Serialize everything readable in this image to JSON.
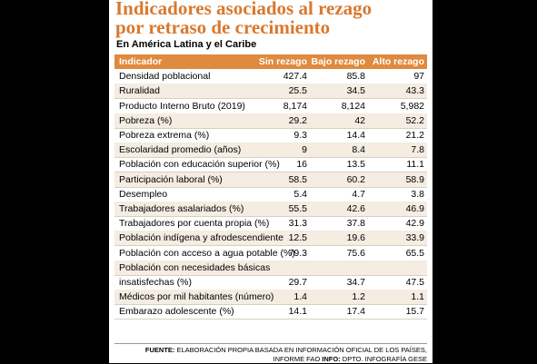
{
  "header": {
    "title_lines": [
      "Indicadores asociados al rezago",
      "por retraso de crecimiento"
    ],
    "subtitle": "En América Latina y el Caribe"
  },
  "table": {
    "columns": [
      "Indicador",
      "Sin rezago",
      "Bajo rezago",
      "Alto rezago"
    ],
    "rows": [
      [
        "Densidad poblacional",
        "427.4",
        "85.8",
        "97"
      ],
      [
        "Ruralidad",
        "25.5",
        "34.5",
        "43.3"
      ],
      [
        "Producto Interno Bruto (2019)",
        "8,174",
        "8,124",
        "5,982"
      ],
      [
        "Pobreza (%)",
        "29.2",
        "42",
        "52.2"
      ],
      [
        "Pobreza extrema (%)",
        "9.3",
        "14.4",
        "21.2"
      ],
      [
        "Escolaridad promedio (años)",
        "9",
        "8.4",
        "7.8"
      ],
      [
        "Población con educación superior (%)",
        "16",
        "13.5",
        "11.1"
      ],
      [
        "Participación laboral (%)",
        "58.5",
        "60.2",
        "58.9"
      ],
      [
        "Desempleo",
        "5.4",
        "4.7",
        "3.8"
      ],
      [
        "Trabajadores asalariados (%)",
        "55.5",
        "42.6",
        "46.9"
      ],
      [
        "Trabajadores por cuenta propia (%)",
        "31.3",
        "37.8",
        "42.9"
      ],
      [
        "Población indígena y afrodescendiente",
        "12.5",
        "19.6",
        "33.9"
      ],
      [
        "Población con acceso a agua potable (%)",
        "79.3",
        "75.6",
        "65.5"
      ],
      [
        "Población con necesidades básicas"
      ],
      [
        "insatisfechas (%)",
        "29.7",
        "34.7",
        "47.5"
      ],
      [
        "Médicos por mil habitantes (número)",
        "1.4",
        "1.2",
        "1.1"
      ],
      [
        "Embarazo adolescente (%)",
        "14.1",
        "17.4",
        "15.7"
      ]
    ]
  },
  "footer": {
    "source_label": "FUENTE:",
    "source_text": "ELABORACIÓN PROPIA BASADA EN INFORMACIÓN OFICIAL DE LOS PAÍSES,",
    "source_text_2": "INFORME FAO",
    "info_label": "INFO:",
    "info_text": "DPTO. INFOGRAFÍA GESE"
  }
}
